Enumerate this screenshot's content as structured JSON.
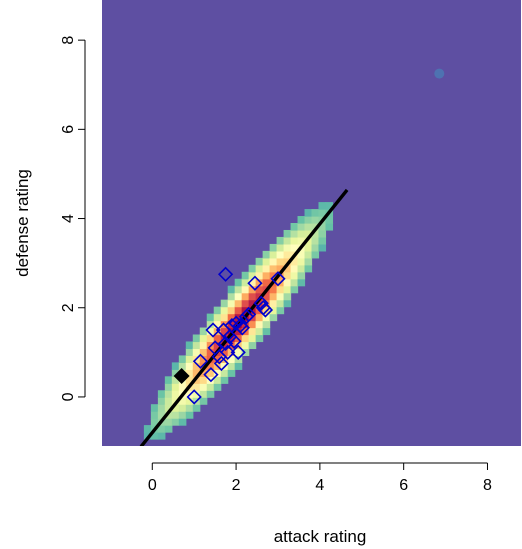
{
  "chart_data": {
    "type": "heatmap",
    "title": "",
    "xlabel": "attack rating",
    "ylabel": "defense rating",
    "xlim": [
      -1.2,
      8.8
    ],
    "ylim": [
      -1.1,
      8.9
    ],
    "x_ticks": [
      0,
      2,
      4,
      6,
      8
    ],
    "y_ticks": [
      0,
      2,
      4,
      6,
      8
    ],
    "x_tick_labels": [
      "0",
      "2",
      "4",
      "6",
      "8"
    ],
    "y_tick_labels": [
      "0",
      "2",
      "4",
      "6",
      "8"
    ],
    "background_color": "#5E4FA2",
    "density": {
      "center": [
        2.1,
        1.7
      ],
      "sd_x": 0.85,
      "sd_y": 1.0,
      "correlation": 0.93,
      "colormap": [
        "#5E4FA2",
        "#3288BD",
        "#66C2A5",
        "#ABDDA4",
        "#E6F598",
        "#FFFFBF",
        "#FEE08B",
        "#FDAE61",
        "#F46D43",
        "#D53E4F",
        "#9E0142"
      ]
    },
    "line": {
      "intercept": -0.8,
      "slope": 1.17,
      "x_range": [
        -0.27,
        4.65
      ],
      "color": "#000000"
    },
    "points": {
      "marker": "open-diamond",
      "color": "#0000CD",
      "x": [
        1.0,
        1.15,
        1.4,
        1.45,
        1.5,
        1.6,
        1.65,
        1.7,
        1.75,
        1.8,
        1.85,
        1.9,
        1.95,
        2.0,
        2.05,
        2.1,
        2.15,
        2.25,
        2.3,
        2.45,
        2.6,
        2.65,
        2.7,
        3.0,
        1.75
      ],
      "y": [
        0.0,
        0.8,
        0.5,
        1.5,
        1.1,
        0.9,
        0.75,
        1.5,
        1.2,
        1.0,
        1.35,
        1.6,
        1.25,
        1.65,
        1.0,
        1.6,
        1.55,
        1.8,
        1.85,
        2.55,
        2.1,
        2.0,
        1.95,
        2.65,
        2.75
      ]
    },
    "highlight_point": {
      "marker": "filled-diamond",
      "color": "#000000",
      "x": 0.7,
      "y": 0.47
    },
    "faint_point": {
      "marker": "star",
      "color": "#4A7AB5",
      "x": 6.85,
      "y": 7.25
    }
  }
}
